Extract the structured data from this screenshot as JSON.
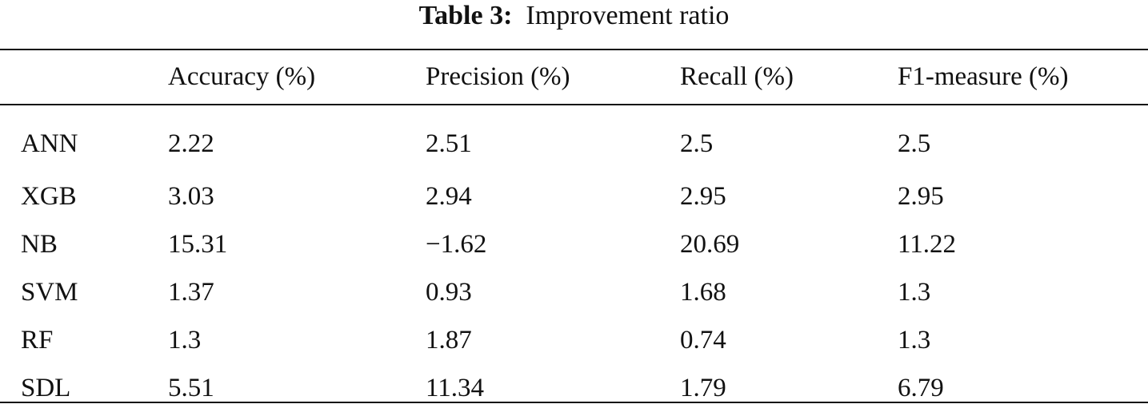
{
  "caption": {
    "label": "Table 3:",
    "title": "Improvement ratio"
  },
  "table": {
    "columns": [
      "",
      "Accuracy (%)",
      "Precision (%)",
      "Recall (%)",
      "F1-measure (%)"
    ],
    "rows": [
      [
        "ANN",
        "2.22",
        "2.51",
        "2.5",
        "2.5"
      ],
      [
        "XGB",
        "3.03",
        "2.94",
        "2.95",
        "2.95"
      ],
      [
        "NB",
        "15.31",
        "−1.62",
        "20.69",
        "11.22"
      ],
      [
        "SVM",
        "1.37",
        "0.93",
        "1.68",
        "1.3"
      ],
      [
        "RF",
        "1.3",
        "1.87",
        "0.74",
        "1.3"
      ],
      [
        "SDL",
        "5.51",
        "11.34",
        "1.79",
        "6.79"
      ]
    ]
  }
}
